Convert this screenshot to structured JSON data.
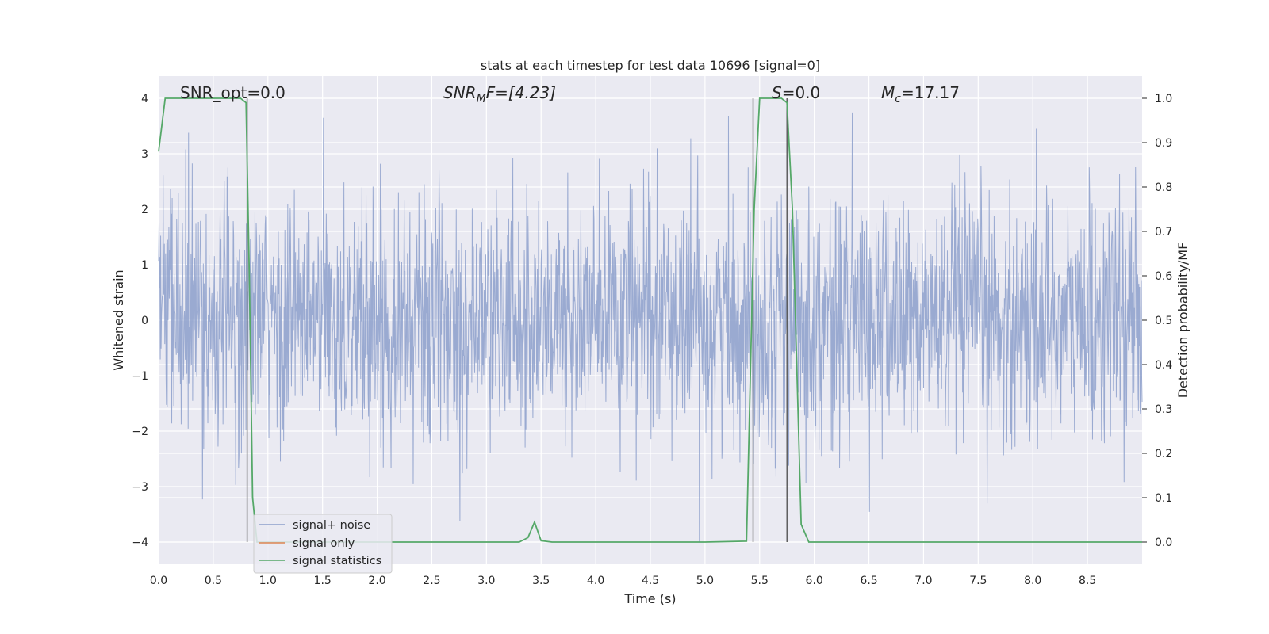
{
  "chart_data": {
    "type": "line",
    "title": "stats at each timestep for test data 10696 [signal=0]",
    "xlabel": "Time (s)",
    "ylabel_left": "Whitened strain",
    "ylabel_right": "Detection probability/MF",
    "xlim": [
      0.0,
      9.0
    ],
    "ylim_left": [
      -4.4,
      4.4
    ],
    "ylim_right": [
      -0.05,
      1.05
    ],
    "x_ticks": [
      0.0,
      0.5,
      1.0,
      1.5,
      2.0,
      2.5,
      3.0,
      3.5,
      4.0,
      4.5,
      5.0,
      5.5,
      6.0,
      6.5,
      7.0,
      7.5,
      8.0,
      8.5
    ],
    "x_tick_labels": [
      "0.0",
      "0.5",
      "1.0",
      "1.5",
      "2.0",
      "2.5",
      "3.0",
      "3.5",
      "4.0",
      "4.5",
      "5.0",
      "5.5",
      "6.0",
      "6.5",
      "7.0",
      "7.5",
      "8.0",
      "8.5"
    ],
    "y_left_ticks": [
      -4,
      -3,
      -2,
      -1,
      0,
      1,
      2,
      3,
      4
    ],
    "y_left_tick_labels": [
      "−4",
      "−3",
      "−2",
      "−1",
      "0",
      "1",
      "2",
      "3",
      "4"
    ],
    "y_right_ticks": [
      0.0,
      0.1,
      0.2,
      0.3,
      0.4,
      0.5,
      0.6,
      0.7,
      0.8,
      0.9,
      1.0
    ],
    "y_right_tick_labels": [
      "0.0",
      "0.1",
      "0.2",
      "0.3",
      "0.4",
      "0.5",
      "0.6",
      "0.7",
      "0.8",
      "0.9",
      "1.0"
    ],
    "grid": true,
    "legend": {
      "placement": "lower-left",
      "entries": [
        {
          "label": "signal+ noise",
          "color": "#8c9fcb"
        },
        {
          "label": "signal only",
          "color": "#dd8452"
        },
        {
          "label": "signal statistics",
          "color": "#55a868"
        }
      ]
    },
    "annotations": {
      "snr_opt": "SNR_opt=0.0",
      "snr_mf_symbol": "SNR",
      "snr_mf_subscript": "M",
      "snr_mf_rest": "F=[4.23]",
      "s_symbol": "S",
      "s_rest": "=0.0",
      "mc_symbol": "M",
      "mc_subscript": "c",
      "mc_rest": "=17.17"
    },
    "vertical_lines_x": [
      0.81,
      5.44,
      5.75
    ],
    "noise_series": {
      "name": "signal+ noise",
      "color": "#8c9fcb",
      "x_range": [
        0.0,
        9.0
      ],
      "amplitude_range": [
        -4.0,
        4.0
      ]
    },
    "signal_statistics": {
      "name": "signal statistics",
      "color": "#55a868",
      "x": [
        0.0,
        0.06,
        0.1,
        0.5,
        0.75,
        0.8,
        0.83,
        0.86,
        0.9,
        1.0,
        3.3,
        3.38,
        3.44,
        3.5,
        3.6,
        5.0,
        5.38,
        5.45,
        5.5,
        5.55,
        5.7,
        5.75,
        5.8,
        5.88,
        5.95,
        9.0
      ],
      "y": [
        0.88,
        1.0,
        1.0,
        1.0,
        1.0,
        0.99,
        0.6,
        0.1,
        0.0,
        0.0,
        0.0,
        0.01,
        0.045,
        0.003,
        0.0,
        0.0,
        0.002,
        0.75,
        1.0,
        1.0,
        1.0,
        0.99,
        0.75,
        0.04,
        0.0,
        0.0
      ]
    }
  }
}
